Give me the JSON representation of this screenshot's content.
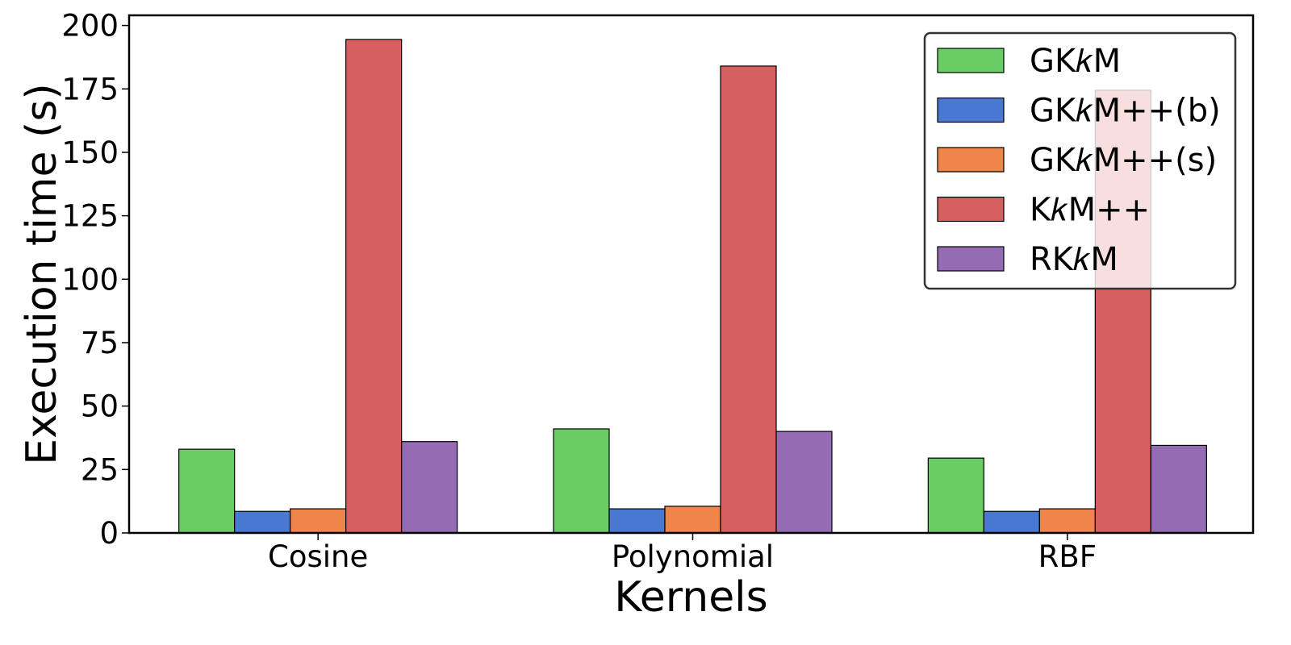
{
  "chart_data": {
    "type": "bar",
    "title": "",
    "xlabel": "Kernels",
    "ylabel": "Execution time (s)",
    "categories": [
      "Cosine",
      "Polynomial",
      "RBF"
    ],
    "ylim": [
      0,
      204
    ],
    "yticks": [
      0,
      25,
      50,
      75,
      100,
      125,
      150,
      175,
      200
    ],
    "grid": false,
    "legend_position": "top-right",
    "series": [
      {
        "name": "GK𝑘M",
        "color": "#6acc64",
        "values": [
          33,
          41,
          29.5
        ]
      },
      {
        "name": "GK𝑘M++(b)",
        "color": "#4878d0",
        "values": [
          8.5,
          9.5,
          8.5
        ]
      },
      {
        "name": "GK𝑘M++(s)",
        "color": "#ee854a",
        "values": [
          9.5,
          10.5,
          9.5
        ]
      },
      {
        "name": "K𝑘M++",
        "color": "#d65f5f",
        "values": [
          194.5,
          184,
          174.5
        ]
      },
      {
        "name": "RK𝑘M",
        "color": "#956cb4",
        "values": [
          36,
          40,
          34.5
        ]
      }
    ]
  }
}
